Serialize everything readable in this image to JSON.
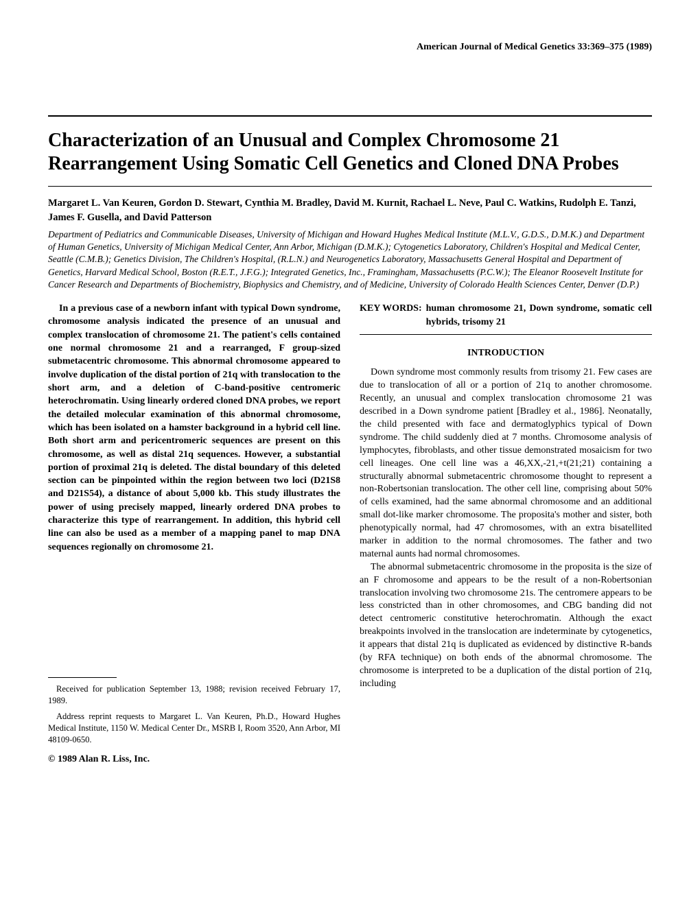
{
  "header": {
    "journal_reference": "American Journal of Medical Genetics 33:369–375 (1989)"
  },
  "title": "Characterization of an Unusual and Complex Chromosome 21 Rearrangement Using Somatic Cell Genetics and Cloned DNA Probes",
  "authors": "Margaret L. Van Keuren, Gordon D. Stewart, Cynthia M. Bradley, David M. Kurnit, Rachael L. Neve, Paul C. Watkins, Rudolph E. Tanzi, James F. Gusella, and David Patterson",
  "affiliations": "Department of Pediatrics and Communicable Diseases, University of Michigan and Howard Hughes Medical Institute (M.L.V., G.D.S., D.M.K.) and Department of Human Genetics, University of Michigan Medical Center, Ann Arbor, Michigan (D.M.K.); Cytogenetics Laboratory, Children's Hospital and Medical Center, Seattle (C.M.B.); Genetics Division, The Children's Hospital, (R.L.N.) and Neurogenetics Laboratory, Massachusetts General Hospital and Department of Genetics, Harvard Medical School, Boston (R.E.T., J.F.G.); Integrated Genetics, Inc., Framingham, Massachusetts (P.C.W.); The Eleanor Roosevelt Institute for Cancer Research and Departments of Biochemistry, Biophysics and Chemistry, and of Medicine, University of Colorado Health Sciences Center, Denver (D.P.)",
  "abstract": "In a previous case of a newborn infant with typical Down syndrome, chromosome analysis indicated the presence of an unusual and complex translocation of chromosome 21. The patient's cells contained one normal chromosome 21 and a rearranged, F group-sized submetacentric chromosome. This abnormal chromosome appeared to involve duplication of the distal portion of 21q with translocation to the short arm, and a deletion of C-band-positive centromeric heterochromatin. Using linearly ordered cloned DNA probes, we report the detailed molecular examination of this abnormal chromosome, which has been isolated on a hamster background in a hybrid cell line. Both short arm and pericentromeric sequences are present on this chromosome, as well as distal 21q sequences. However, a substantial portion of proximal 21q is deleted. The distal boundary of this deleted section can be pinpointed within the region between two loci (D21S8 and D21S54), a distance of about 5,000 kb. This study illustrates the power of using precisely mapped, linearly ordered DNA probes to characterize this type of rearrangement. In addition, this hybrid cell line can also be used as a member of a mapping panel to map DNA sequences regionally on chromosome 21.",
  "keywords": {
    "label": "KEY WORDS:",
    "text": "human chromosome 21, Down syndrome, somatic cell hybrids, trisomy 21"
  },
  "sections": {
    "introduction": {
      "heading": "INTRODUCTION",
      "paragraphs": [
        "Down syndrome most commonly results from trisomy 21. Few cases are due to translocation of all or a portion of 21q to another chromosome. Recently, an unusual and complex translocation chromosome 21 was described in a Down syndrome patient [Bradley et al., 1986]. Neonatally, the child presented with face and dermatoglyphics typical of Down syndrome. The child suddenly died at 7 months. Chromosome analysis of lymphocytes, fibroblasts, and other tissue demonstrated mosaicism for two cell lineages. One cell line was a 46,XX,-21,+t(21;21) containing a structurally abnormal submetacentric chromosome thought to represent a non-Robertsonian translocation. The other cell line, comprising about 50% of cells examined, had the same abnormal chromosome and an additional small dot-like marker chromosome. The proposita's mother and sister, both phenotypically normal, had 47 chromosomes, with an extra bisatellited marker in addition to the normal chromosomes. The father and two maternal aunts had normal chromosomes.",
        "The abnormal submetacentric chromosome in the proposita is the size of an F chromosome and appears to be the result of a non-Robertsonian translocation involving two chromosome 21s. The centromere appears to be less constricted than in other chromosomes, and CBG banding did not detect centromeric constitutive heterochromatin. Although the exact breakpoints involved in the translocation are indeterminate by cytogenetics, it appears that distal 21q is duplicated as evidenced by distinctive R-bands (by RFA technique) on both ends of the abnormal chromosome. The chromosome is interpreted to be a duplication of the distal portion of 21q, including"
      ]
    }
  },
  "footnotes": [
    "Received for publication September 13, 1988; revision received February 17, 1989.",
    "Address reprint requests to Margaret L. Van Keuren, Ph.D., Howard Hughes Medical Institute, 1150 W. Medical Center Dr., MSRB I, Room 3520, Ann Arbor, MI 48109-0650."
  ],
  "copyright": "© 1989 Alan R. Liss, Inc."
}
